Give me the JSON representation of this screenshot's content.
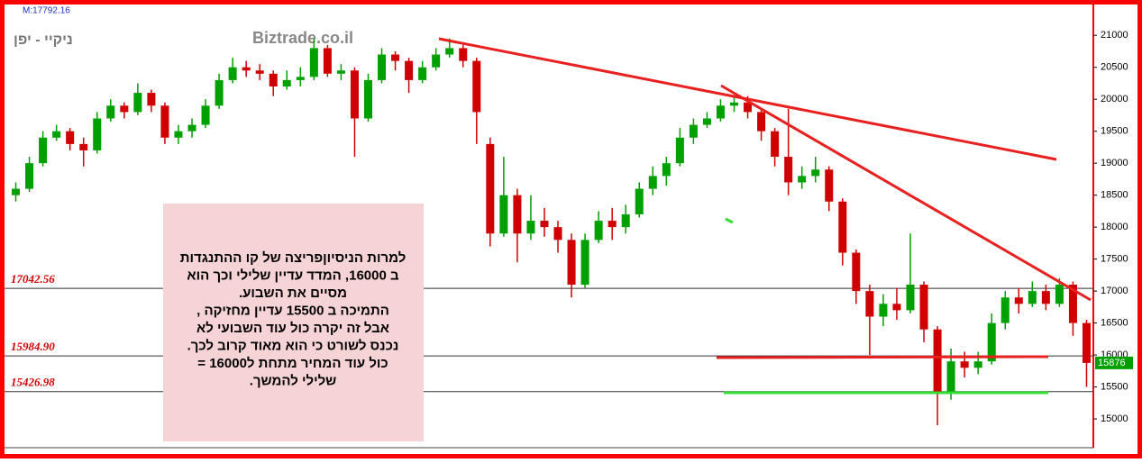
{
  "chart_data": {
    "type": "candlestick",
    "title": "ניקיי - יפן",
    "watermark": "Biztrade.co.il",
    "header_label": "M:17792.16",
    "up_color": "#00a000",
    "down_color": "#d00000",
    "ylim": [
      14550,
      21440
    ],
    "yticks": [
      15000,
      15500,
      16000,
      16500,
      17000,
      17500,
      18000,
      18500,
      19000,
      19500,
      20000,
      20500,
      21000
    ],
    "open": [
      18500,
      18600,
      19000,
      19400,
      19500,
      19300,
      19200,
      19700,
      19900,
      19800,
      20100,
      19900,
      19400,
      19500,
      19600,
      19900,
      20300,
      20500,
      20450,
      20400,
      20200,
      20300,
      20350,
      20800,
      20400,
      20450,
      19700,
      20300,
      20700,
      20600,
      20300,
      20500,
      20700,
      20800,
      20600,
      19300,
      17900,
      18500,
      17900,
      18100,
      18000,
      17800,
      17100,
      17800,
      18100,
      18000,
      18200,
      18600,
      18800,
      19000,
      19400,
      19600,
      19700,
      19900,
      19950,
      19800,
      19500,
      19100,
      18700,
      18800,
      18900,
      18400,
      17600,
      17000,
      16600,
      16800,
      16700,
      17100,
      16400,
      15400,
      15900,
      15800,
      15900,
      16500,
      16900,
      16800,
      17000,
      16800,
      17100,
      16500
    ],
    "high": [
      18700,
      19100,
      19500,
      19600,
      19550,
      19400,
      19800,
      20000,
      19950,
      20250,
      20150,
      19950,
      19600,
      19700,
      20000,
      20400,
      20650,
      20600,
      20550,
      20450,
      20450,
      20500,
      20950,
      20850,
      20550,
      20500,
      20400,
      20800,
      20750,
      20650,
      20600,
      20800,
      20950,
      20850,
      20650,
      19400,
      19100,
      18600,
      18500,
      18300,
      18100,
      17900,
      17900,
      18250,
      18300,
      18350,
      18700,
      18950,
      19100,
      19550,
      19700,
      19800,
      20000,
      20050,
      20050,
      19850,
      19550,
      19850,
      18950,
      19100,
      18950,
      18450,
      17650,
      17100,
      16950,
      17050,
      17900,
      17150,
      16450,
      16100,
      16050,
      16050,
      16650,
      17000,
      17050,
      17150,
      17100,
      17200,
      17150,
      16550
    ],
    "low": [
      18400,
      18550,
      18950,
      19350,
      19200,
      18950,
      19150,
      19650,
      19700,
      19750,
      19800,
      19300,
      19300,
      19400,
      19550,
      19850,
      20250,
      20350,
      20300,
      20050,
      20150,
      20200,
      20300,
      20350,
      20300,
      19100,
      19650,
      20250,
      20450,
      20100,
      20250,
      20450,
      20650,
      20500,
      19300,
      17700,
      17850,
      17450,
      17800,
      17850,
      17600,
      16900,
      17050,
      17750,
      17800,
      17900,
      18150,
      18500,
      18650,
      18950,
      19300,
      19550,
      19650,
      19800,
      19700,
      19350,
      18950,
      18500,
      18600,
      18700,
      18250,
      17400,
      16800,
      16000,
      16450,
      16550,
      16650,
      16200,
      14900,
      15300,
      15650,
      15700,
      15850,
      16400,
      16650,
      16750,
      16700,
      16750,
      16300,
      15500
    ],
    "close": [
      18600,
      19000,
      19400,
      19500,
      19300,
      19200,
      19700,
      19900,
      19800,
      20100,
      19900,
      19400,
      19500,
      19600,
      19900,
      20300,
      20500,
      20450,
      20400,
      20200,
      20300,
      20350,
      20800,
      20400,
      20450,
      19700,
      20300,
      20700,
      20600,
      20300,
      20500,
      20700,
      20800,
      20600,
      19800,
      17900,
      18500,
      17900,
      18100,
      18000,
      17800,
      17100,
      17800,
      18100,
      18000,
      18200,
      18600,
      18800,
      19000,
      19400,
      19600,
      19700,
      19900,
      19950,
      19800,
      19500,
      19100,
      18700,
      18800,
      18900,
      18400,
      17600,
      17000,
      16600,
      16800,
      16700,
      17100,
      16400,
      15400,
      15900,
      15800,
      15900,
      16500,
      16900,
      16800,
      17000,
      16800,
      17100,
      16500,
      15876
    ],
    "reference_lines": [
      {
        "value": 17042.56,
        "label": "17042.56"
      },
      {
        "value": 15984.9,
        "label": "15984.90"
      },
      {
        "value": 15426.98,
        "label": "15426.98"
      }
    ],
    "last_price": 15876,
    "last_price_color": "#00a000",
    "annotation_lines": [
      "למרות הניסיוןפריצה  של  קו ההתנגדות",
      "ב 16000, המדד  עדיין  שלילי וכך הוא",
      "מסיים את השבוע.",
      "התמיכה  ב  15500  עדיין מחזיקה ,",
      "אבל זה  יקרה  כול עוד  השבועי  לא",
      "נכנס  לשורט כי הוא  מאוד קרוב  לכך.",
      "כול עוד  המחיר  מתחת ל16000 =",
      "שלילי  להמשך."
    ]
  }
}
